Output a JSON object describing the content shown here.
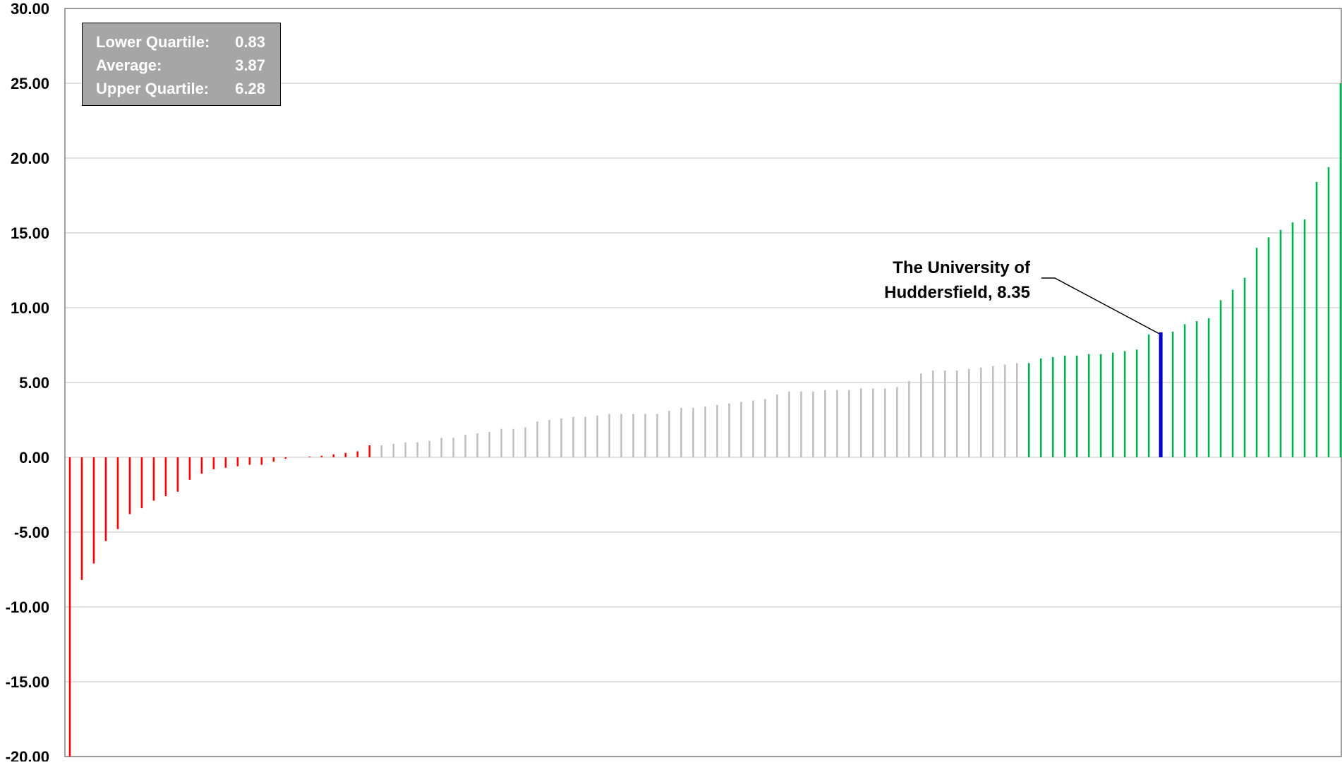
{
  "chart_data": {
    "type": "bar",
    "title": "",
    "xlabel": "",
    "ylabel": "",
    "ylim": [
      -20,
      30
    ],
    "y_ticks": [
      "30.00",
      "25.00",
      "20.00",
      "15.00",
      "10.00",
      "5.00",
      "0.00",
      "-5.00",
      "-10.00",
      "-15.00",
      "-20.00"
    ],
    "y_tick_values": [
      30,
      25,
      20,
      15,
      10,
      5,
      0,
      -5,
      -10,
      -15,
      -20
    ],
    "grid": true,
    "colors": {
      "lower": "#ff0000",
      "middle": "#bfbfbf",
      "upper": "#00b050",
      "highlight": "#0000cc",
      "grid": "#d9d9d9"
    },
    "quartile_breaks": {
      "lower_end_index": 26,
      "upper_start_index": 80
    },
    "highlight_index": 91,
    "values": [
      -20.0,
      -8.2,
      -7.1,
      -5.6,
      -4.8,
      -3.8,
      -3.4,
      -2.9,
      -2.6,
      -2.3,
      -1.5,
      -1.1,
      -0.8,
      -0.7,
      -0.6,
      -0.5,
      -0.5,
      -0.3,
      -0.1,
      0.0,
      0.05,
      0.1,
      0.2,
      0.3,
      0.4,
      0.8,
      0.8,
      0.9,
      1.0,
      1.0,
      1.1,
      1.3,
      1.3,
      1.5,
      1.6,
      1.7,
      1.9,
      1.9,
      2.0,
      2.4,
      2.5,
      2.6,
      2.7,
      2.7,
      2.8,
      2.9,
      2.9,
      2.9,
      2.9,
      2.9,
      3.1,
      3.3,
      3.3,
      3.4,
      3.5,
      3.6,
      3.7,
      3.8,
      3.9,
      4.2,
      4.4,
      4.4,
      4.4,
      4.5,
      4.5,
      4.5,
      4.6,
      4.6,
      4.6,
      4.7,
      5.1,
      5.6,
      5.8,
      5.8,
      5.8,
      5.9,
      6.0,
      6.1,
      6.2,
      6.3,
      6.3,
      6.6,
      6.7,
      6.8,
      6.8,
      6.9,
      6.9,
      7.0,
      7.1,
      7.2,
      8.2,
      8.35,
      8.4,
      8.9,
      9.1,
      9.3,
      10.5,
      11.2,
      12.0,
      14.0,
      14.7,
      15.2,
      15.7,
      15.9,
      18.4,
      19.4,
      25.0
    ],
    "stats": [
      {
        "label": "Lower Quartile:",
        "value": "0.83"
      },
      {
        "label": "Average:",
        "value": "3.87"
      },
      {
        "label": "Upper Quartile:",
        "value": "6.28"
      }
    ],
    "annotation": {
      "line1": "The University of",
      "line2": "Huddersfield, 8.35",
      "value": 8.35
    }
  }
}
